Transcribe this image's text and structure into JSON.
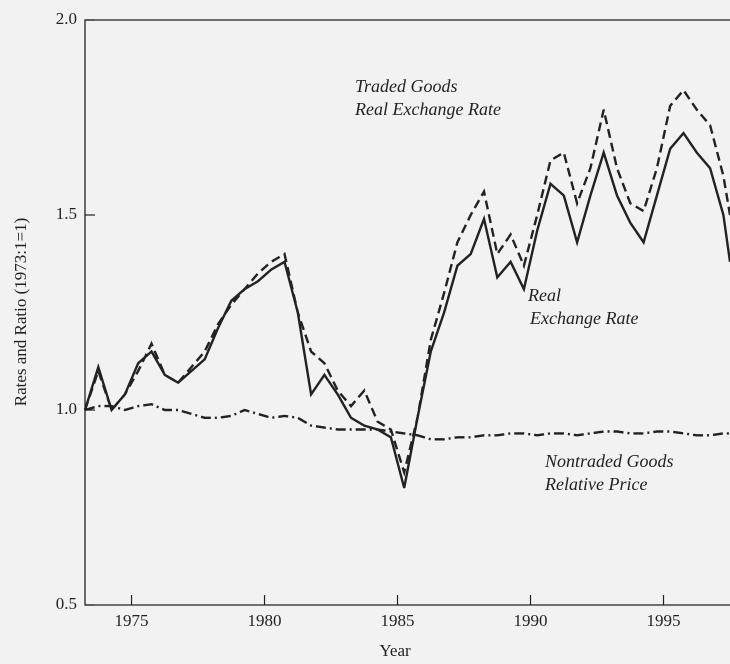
{
  "chart_data": {
    "type": "line",
    "xlabel": "Year",
    "ylabel": "Rates and Ratio (1973:1=1)",
    "annotations": [
      [
        "Traded Goods",
        "Real Exchange Rate"
      ],
      [
        "Real",
        "Exchange Rate"
      ],
      [
        "Nontraded Goods",
        "Relative Price"
      ]
    ],
    "x": [
      1973.25,
      1973.75,
      1974.25,
      1974.75,
      1975.25,
      1975.75,
      1976.25,
      1976.75,
      1977.25,
      1977.75,
      1978.25,
      1978.75,
      1979.25,
      1979.75,
      1980.25,
      1980.75,
      1981.25,
      1981.75,
      1982.25,
      1982.75,
      1983.25,
      1983.75,
      1984.25,
      1984.75,
      1985.25,
      1985.75,
      1986.25,
      1986.75,
      1987.25,
      1987.75,
      1988.25,
      1988.75,
      1989.25,
      1989.75,
      1990.25,
      1990.75,
      1991.25,
      1991.75,
      1992.25,
      1992.75,
      1993.25,
      1993.75,
      1994.25,
      1994.75,
      1995.25,
      1995.75,
      1996.25,
      1996.75,
      1997.25,
      1997.5
    ],
    "series": [
      {
        "color": "#222222",
        "style": "solid",
        "values": [
          1.0,
          1.11,
          1.0,
          1.04,
          1.12,
          1.15,
          1.09,
          1.07,
          1.1,
          1.13,
          1.21,
          1.28,
          1.31,
          1.33,
          1.36,
          1.38,
          1.25,
          1.04,
          1.09,
          1.04,
          0.98,
          0.96,
          0.95,
          0.93,
          0.8,
          0.98,
          1.15,
          1.25,
          1.37,
          1.4,
          1.49,
          1.34,
          1.38,
          1.31,
          1.46,
          1.58,
          1.55,
          1.43,
          1.55,
          1.66,
          1.55,
          1.48,
          1.43,
          1.55,
          1.67,
          1.71,
          1.66,
          1.62,
          1.5,
          1.38
        ]
      },
      {
        "color": "#222222",
        "style": "dashed",
        "values": [
          1.0,
          1.1,
          1.0,
          1.04,
          1.1,
          1.17,
          1.09,
          1.07,
          1.11,
          1.15,
          1.22,
          1.27,
          1.31,
          1.35,
          1.38,
          1.4,
          1.25,
          1.15,
          1.12,
          1.05,
          1.01,
          1.05,
          0.97,
          0.95,
          0.84,
          0.98,
          1.18,
          1.3,
          1.43,
          1.5,
          1.56,
          1.4,
          1.45,
          1.37,
          1.5,
          1.64,
          1.66,
          1.53,
          1.62,
          1.77,
          1.62,
          1.53,
          1.51,
          1.62,
          1.78,
          1.82,
          1.77,
          1.73,
          1.6,
          1.5
        ]
      },
      {
        "color": "#222222",
        "style": "dashdot",
        "values": [
          1.0,
          1.01,
          1.01,
          1.0,
          1.01,
          1.015,
          1.0,
          1.0,
          0.99,
          0.98,
          0.98,
          0.985,
          1.0,
          0.99,
          0.98,
          0.985,
          0.98,
          0.96,
          0.955,
          0.95,
          0.95,
          0.95,
          0.95,
          0.945,
          0.94,
          0.935,
          0.925,
          0.925,
          0.93,
          0.93,
          0.935,
          0.935,
          0.94,
          0.94,
          0.935,
          0.94,
          0.94,
          0.935,
          0.94,
          0.945,
          0.945,
          0.94,
          0.94,
          0.945,
          0.945,
          0.94,
          0.935,
          0.935,
          0.94,
          0.94
        ]
      }
    ],
    "xlim": [
      1973.25,
      1997.5
    ],
    "xticks": [
      1975,
      1980,
      1985,
      1990,
      1995
    ],
    "ylim": [
      0.5,
      2.0
    ],
    "yticks": [
      {
        "value": 0.5,
        "label": "0.5"
      },
      {
        "value": 1.0,
        "label": "1.0"
      },
      {
        "value": 1.5,
        "label": "1.5"
      },
      {
        "value": 2.0,
        "label": "2.0"
      }
    ]
  }
}
